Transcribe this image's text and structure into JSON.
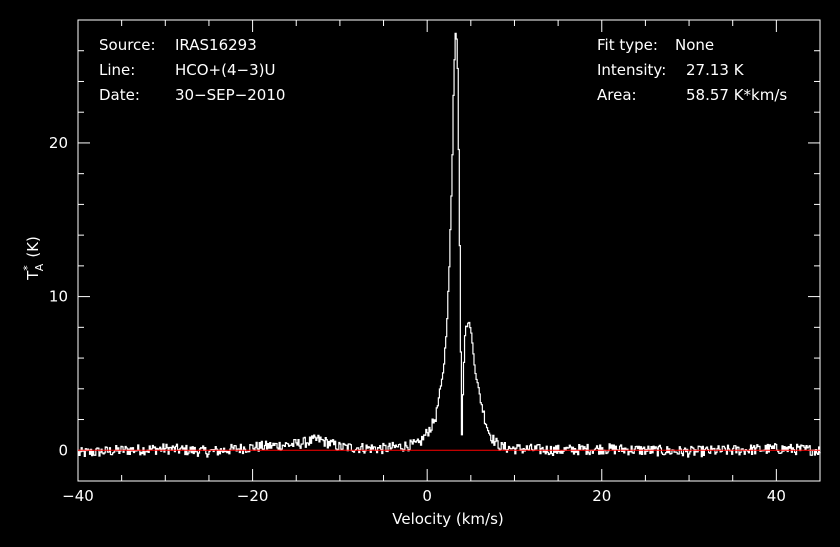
{
  "info_left": {
    "source_label": "Source:",
    "source_value": "IRAS16293",
    "line_label": "Line:",
    "line_value": "HCO+(4−3)U",
    "date_label": "Date:",
    "date_value": "30−SEP−2010"
  },
  "info_right": {
    "fit_label": "Fit type:",
    "fit_value": "None",
    "intensity_label": "Intensity:",
    "intensity_value": "27.13 K",
    "area_label": "Area:",
    "area_value": "58.57 K*km/s"
  },
  "colors": {
    "background": "#000000",
    "spectrum": "#ffffff",
    "baseline": "#ff0000",
    "axes": "#ffffff"
  },
  "chart_data": {
    "type": "line",
    "title": "",
    "xlabel": "Velocity (km/s)",
    "ylabel_main": "T",
    "ylabel_sup": "*",
    "ylabel_sub": "A",
    "ylabel_unit": "(K)",
    "xlim": [
      -40,
      45
    ],
    "ylim": [
      -2,
      28
    ],
    "xticks": [
      -40,
      -20,
      0,
      20,
      40
    ],
    "xtick_labels": [
      "−40",
      "−20",
      "0",
      "20",
      "40"
    ],
    "yticks": [
      0,
      10,
      20
    ],
    "ytick_labels": [
      "0",
      "10",
      "20"
    ],
    "baseline": 0,
    "grid": false,
    "series": [
      {
        "x": [
          -40,
          -35,
          -30,
          -25,
          -20,
          -15,
          -12.5,
          -10,
          -5,
          -1,
          0,
          0.5,
          1,
          1.2,
          1.6,
          2,
          2.4,
          2.8,
          3,
          3.2,
          3.4,
          3.6,
          3.9,
          4.1,
          4.3,
          4.6,
          4.9,
          5.2,
          5.5,
          6,
          6.5,
          7,
          7.5,
          8,
          8.5,
          10,
          15,
          20,
          30,
          40,
          45
        ],
        "y": [
          -0.2,
          0,
          0.1,
          -0.1,
          0.2,
          0.4,
          0.7,
          0.2,
          0.1,
          0.4,
          1.2,
          1.6,
          2.3,
          3.1,
          4.2,
          6.5,
          10.5,
          18,
          24.5,
          27.1,
          26.5,
          18,
          0.7,
          5,
          7.8,
          8.3,
          8.1,
          6.5,
          5,
          3.5,
          2.2,
          1.2,
          0.7,
          0.4,
          0.2,
          0.1,
          0,
          0.1,
          -0.1,
          0.1,
          0
        ]
      }
    ]
  }
}
